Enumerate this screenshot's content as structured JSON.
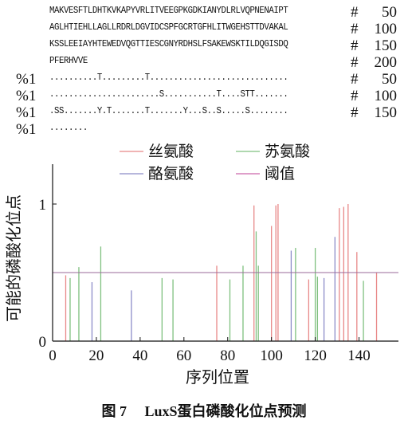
{
  "sequence_rows": [
    {
      "mark": "",
      "text": "MAKVESFTLDHTKVKAPYVRLITVEEGPKGDKIANYDLRLVQPNENAIPT",
      "hash": "#",
      "num": "50"
    },
    {
      "mark": "",
      "text": "AGLHTIEHLLAGLLRDRLDGVIDCSPFGCRTGFHLITWGEHSTTDVAKAL",
      "hash": "#",
      "num": "100"
    },
    {
      "mark": "",
      "text": "KSSLEEIAYHTEWEDVQGTTIESCGNYRDHSLFSAKEWSKTILDQGISDQ",
      "hash": "#",
      "num": "150"
    },
    {
      "mark": "",
      "text": "PFERHVVE",
      "hash": "#",
      "num": "200"
    },
    {
      "mark": "%1",
      "text": "..........T.........T.............................",
      "hash": "#",
      "num": "50"
    },
    {
      "mark": "%1",
      "text": ".......................S...........T....STT.......",
      "hash": "#",
      "num": "100"
    },
    {
      "mark": "%1",
      "text": ".SS.......Y.T.......T.......Y...S..S.....S........",
      "hash": "#",
      "num": "150"
    },
    {
      "mark": "%1",
      "text": "........",
      "hash": "",
      "num": ""
    }
  ],
  "caption": "图 7　 LuxS蛋白磷酸化位点预测",
  "chart_data": {
    "type": "bar",
    "xlabel": "序列位置",
    "ylabel": "可能的磷酸化位点",
    "xlim": [
      0,
      158
    ],
    "ylim": [
      0,
      1.0
    ],
    "xticks": [
      "0",
      "20",
      "40",
      "60",
      "80",
      "100",
      "120",
      "140"
    ],
    "yticks": [
      "0",
      "1"
    ],
    "legend": {
      "placement": "top",
      "entries": [
        {
          "name": "丝氨酸",
          "color": "#e88888"
        },
        {
          "name": "苏氨酸",
          "color": "#7fc07f"
        },
        {
          "name": "酪氨酸",
          "color": "#8c8cc8"
        },
        {
          "name": "阈值",
          "color": "#cc66aa"
        }
      ]
    },
    "threshold": {
      "name": "阈值",
      "value": 0.5,
      "color": "#9a6a9a"
    },
    "series": [
      {
        "name": "丝氨酸",
        "color": "#e88888",
        "x": [
          6,
          75,
          92,
          100,
          102,
          103,
          117,
          131,
          133,
          135,
          139,
          148
        ],
        "y": [
          0.48,
          0.55,
          0.99,
          0.84,
          0.99,
          1.0,
          0.45,
          0.97,
          0.98,
          1.0,
          0.65,
          0.5
        ]
      },
      {
        "name": "苏氨酸",
        "color": "#7fc07f",
        "x": [
          8,
          12,
          22,
          50,
          55,
          81,
          87,
          93,
          94,
          111,
          120,
          121,
          142
        ],
        "y": [
          0.46,
          0.54,
          0.69,
          0.46,
          0.45,
          0.45,
          0.55,
          0.8,
          0.55,
          0.68,
          0.68,
          0.47,
          0.44
        ]
      },
      {
        "name": "酪氨酸",
        "color": "#8c8cc8",
        "x": [
          18,
          36,
          109,
          124,
          129
        ],
        "y": [
          0.43,
          0.37,
          0.66,
          0.46,
          0.76
        ]
      }
    ]
  }
}
